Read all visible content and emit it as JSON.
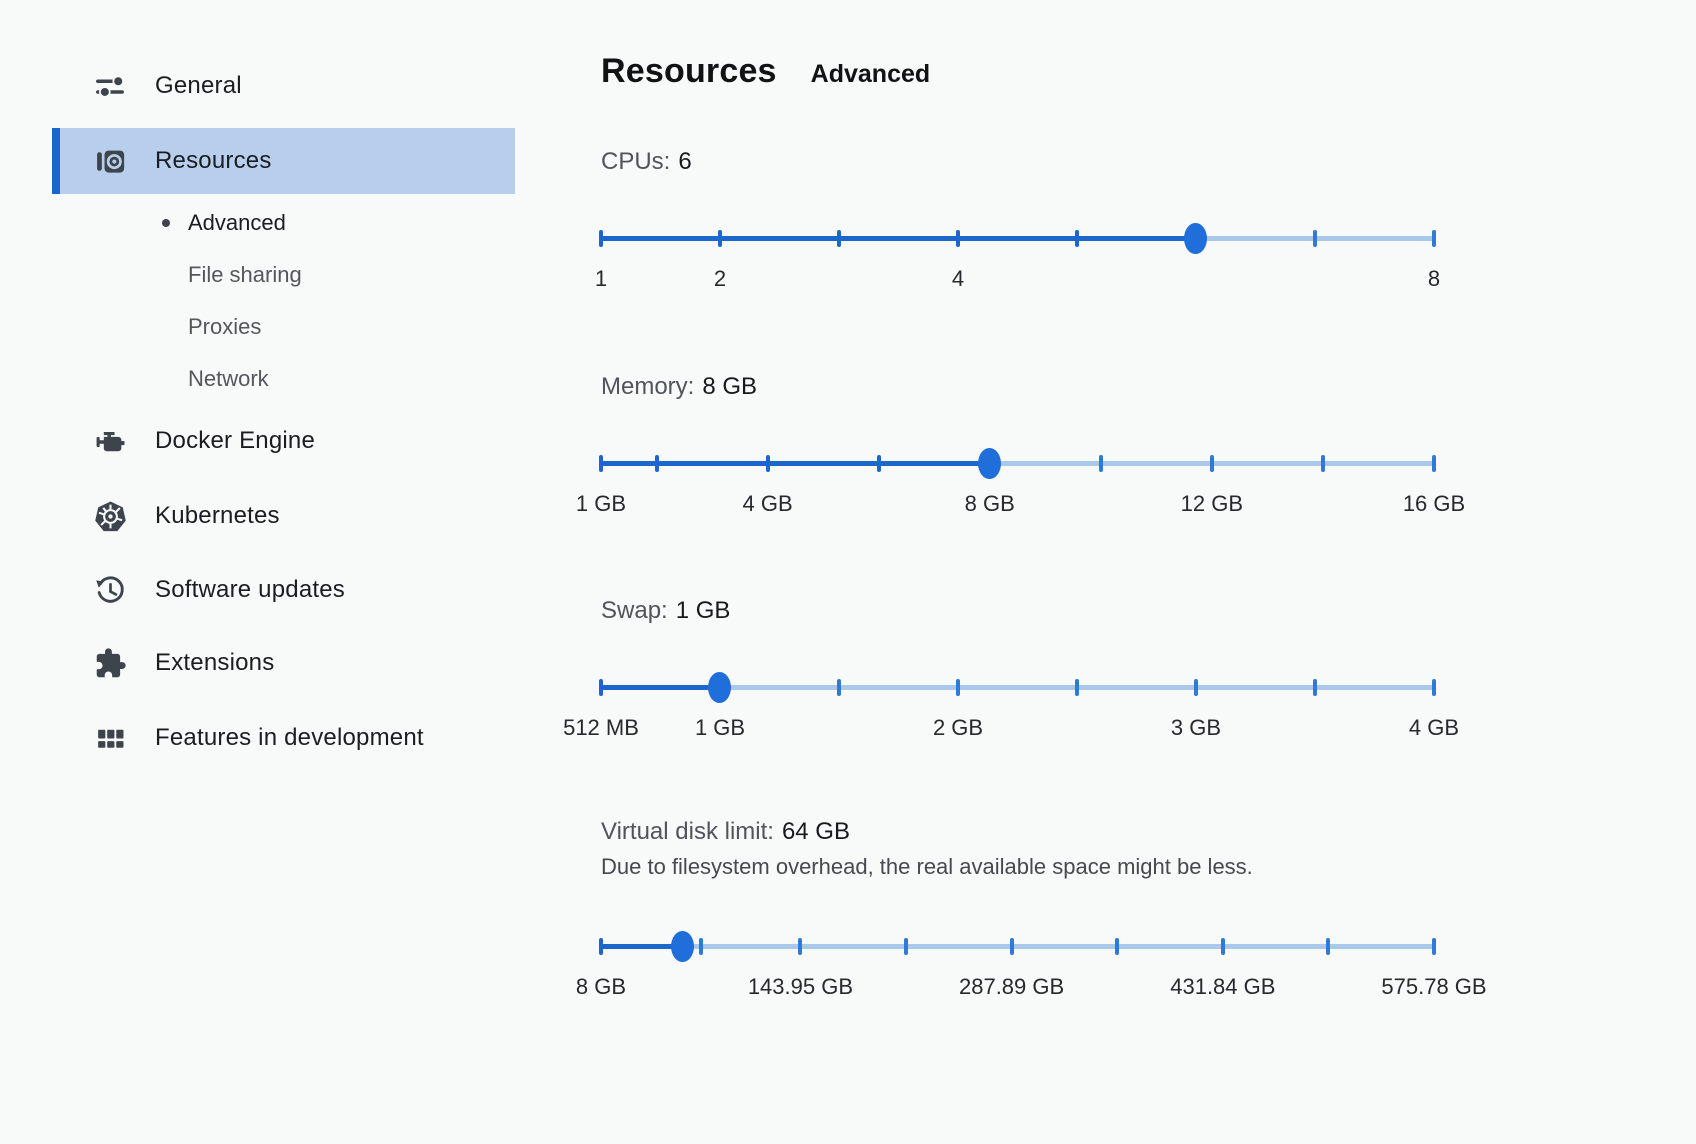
{
  "header": {
    "title": "Resources",
    "subtitle": "Advanced"
  },
  "sidebar": {
    "items": [
      {
        "label": "General"
      },
      {
        "label": "Resources",
        "selected": true
      },
      {
        "label": "Advanced",
        "sub": true,
        "active": true
      },
      {
        "label": "File sharing",
        "sub": true
      },
      {
        "label": "Proxies",
        "sub": true
      },
      {
        "label": "Network",
        "sub": true
      },
      {
        "label": "Docker Engine"
      },
      {
        "label": "Kubernetes"
      },
      {
        "label": "Software updates"
      },
      {
        "label": "Extensions"
      },
      {
        "label": "Features in development"
      }
    ],
    "icons": [
      "tune-icon",
      "resources-icon",
      "engine-icon",
      "kubernetes-icon",
      "history-icon",
      "puzzle-icon",
      "grid-icon"
    ]
  },
  "colors": {
    "background": "#F8F9F9",
    "selected_row": "#B7CFEC",
    "accent_bar": "#1767CE",
    "slider_fill": "#1B67CC",
    "slider_track": "#A9C8EA",
    "slider_thumb": "#1F6ED9",
    "tick_unfilled": "#2F7AD5",
    "icon": "#3D444C"
  },
  "sliders": [
    {
      "name": "cpus",
      "label": "CPUs:",
      "value": "6",
      "thumb": 0.7143,
      "ticks": [
        0,
        0.1429,
        0.2857,
        0.4286,
        0.5714,
        0.7143,
        0.8571,
        1
      ],
      "tick_labels": [
        {
          "f": 0,
          "text": "1"
        },
        {
          "f": 0.1429,
          "text": "2"
        },
        {
          "f": 0.4286,
          "text": "4"
        },
        {
          "f": 1,
          "text": "8"
        }
      ]
    },
    {
      "name": "memory",
      "label": "Memory:",
      "value": "8 GB",
      "thumb": 0.4667,
      "ticks": [
        0,
        0.0667,
        0.2,
        0.3333,
        0.4667,
        0.6,
        0.7333,
        0.8667,
        1
      ],
      "tick_labels": [
        {
          "f": 0,
          "text": "1 GB"
        },
        {
          "f": 0.2,
          "text": "4 GB"
        },
        {
          "f": 0.4667,
          "text": "8 GB"
        },
        {
          "f": 0.7333,
          "text": "12 GB"
        },
        {
          "f": 1,
          "text": "16 GB"
        }
      ]
    },
    {
      "name": "swap",
      "label": "Swap:",
      "value": "1 GB",
      "thumb": 0.1429,
      "ticks": [
        0,
        0.1429,
        0.2857,
        0.4286,
        0.5714,
        0.7143,
        0.8571,
        1
      ],
      "tick_labels": [
        {
          "f": 0,
          "text": "512 MB"
        },
        {
          "f": 0.1429,
          "text": "1 GB"
        },
        {
          "f": 0.4286,
          "text": "2 GB"
        },
        {
          "f": 0.7143,
          "text": "3 GB"
        },
        {
          "f": 1,
          "text": "4 GB"
        }
      ]
    },
    {
      "name": "virtual-disk-limit",
      "label": "Virtual disk limit:",
      "value": "64 GB",
      "note": "Due to filesystem overhead, the real available space might be less.",
      "thumb": 0.0986,
      "ticks": [
        0,
        0.1197,
        0.2394,
        0.3662,
        0.4929,
        0.6197,
        0.7465,
        0.8732,
        1
      ],
      "tick_labels": [
        {
          "f": 0,
          "text": "8 GB"
        },
        {
          "f": 0.2394,
          "text": "143.95 GB"
        },
        {
          "f": 0.4929,
          "text": "287.89 GB"
        },
        {
          "f": 0.7465,
          "text": "431.84 GB"
        },
        {
          "f": 1,
          "text": "575.78 GB"
        }
      ]
    }
  ]
}
